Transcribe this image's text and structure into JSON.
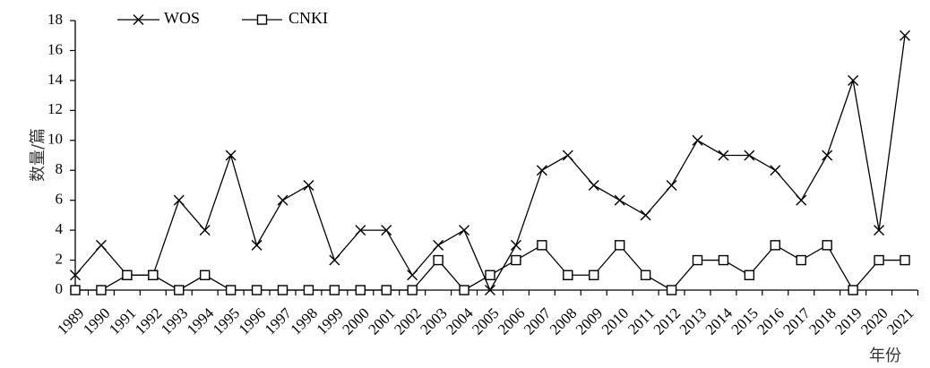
{
  "chart_data": {
    "type": "line",
    "title": "",
    "xlabel": "年份",
    "ylabel": "数量/篇",
    "categories": [
      "1989",
      "1990",
      "1991",
      "1992",
      "1993",
      "1994",
      "1995",
      "1996",
      "1997",
      "1998",
      "1999",
      "2000",
      "2001",
      "2002",
      "2003",
      "2004",
      "2005",
      "2006",
      "2007",
      "2008",
      "2009",
      "2010",
      "2011",
      "2012",
      "2013",
      "2014",
      "2015",
      "2016",
      "2017",
      "2018",
      "2019",
      "2020",
      "2021"
    ],
    "ylim": [
      0,
      18
    ],
    "yticks": [
      0,
      2,
      4,
      6,
      8,
      10,
      12,
      14,
      16,
      18
    ],
    "grid": false,
    "legend_position": "top-left",
    "series": [
      {
        "name": "WOS",
        "marker": "x",
        "color": "#000000",
        "values": [
          1,
          3,
          1,
          1,
          6,
          4,
          9,
          3,
          6,
          7,
          2,
          4,
          4,
          1,
          3,
          4,
          0,
          3,
          8,
          9,
          7,
          6,
          5,
          7,
          10,
          9,
          9,
          8,
          6,
          9,
          14,
          4,
          17
        ]
      },
      {
        "name": "CNKI",
        "marker": "square",
        "color": "#000000",
        "values": [
          0,
          0,
          1,
          1,
          0,
          1,
          0,
          0,
          0,
          0,
          0,
          0,
          0,
          0,
          2,
          0,
          1,
          2,
          3,
          1,
          1,
          3,
          1,
          0,
          2,
          2,
          1,
          3,
          2,
          3,
          0,
          2,
          2
        ]
      }
    ]
  }
}
